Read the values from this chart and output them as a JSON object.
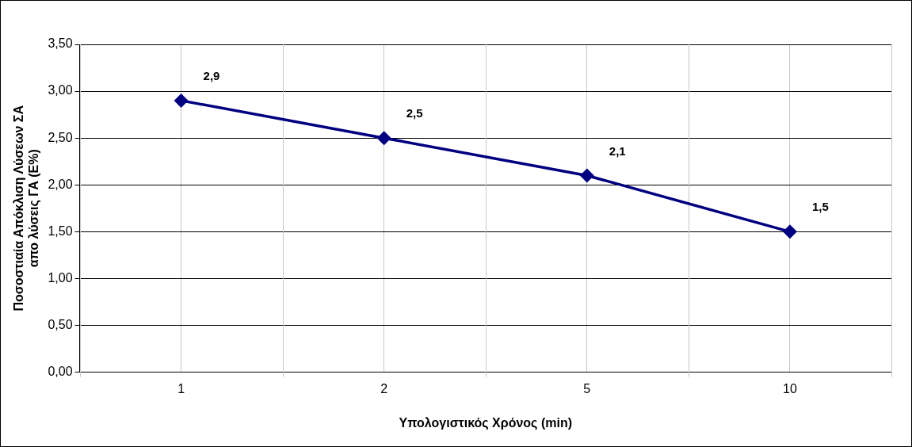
{
  "chart_data": {
    "type": "line",
    "xlabel": "Υπολογιστικός Χρόνος (min)",
    "ylabel": "Ποσοστιαία Απόκλιση Λύσεων ΣΑ απο λύσεις ΓΑ (Ε%)",
    "categories": [
      "1",
      "2",
      "5",
      "10"
    ],
    "series": [
      {
        "color": "#000080",
        "values": [
          2.9,
          2.5,
          2.1,
          1.5
        ],
        "value_labels": [
          "2,9",
          "2,5",
          "2,1",
          "1,5"
        ]
      }
    ],
    "ylim": [
      0,
      3.5
    ],
    "yticks": [
      {
        "value": 0,
        "label": "0,00"
      },
      {
        "value": 0.5,
        "label": "0,50"
      },
      {
        "value": 1,
        "label": "1,00"
      },
      {
        "value": 1.5,
        "label": "1,50"
      },
      {
        "value": 2,
        "label": "2,00"
      },
      {
        "value": 2.5,
        "label": "2,50"
      },
      {
        "value": 3,
        "label": "3,00"
      },
      {
        "value": 3.5,
        "label": "3,50"
      }
    ],
    "grid": true,
    "legend": false,
    "marker": "diamond",
    "line_style": "solid"
  }
}
